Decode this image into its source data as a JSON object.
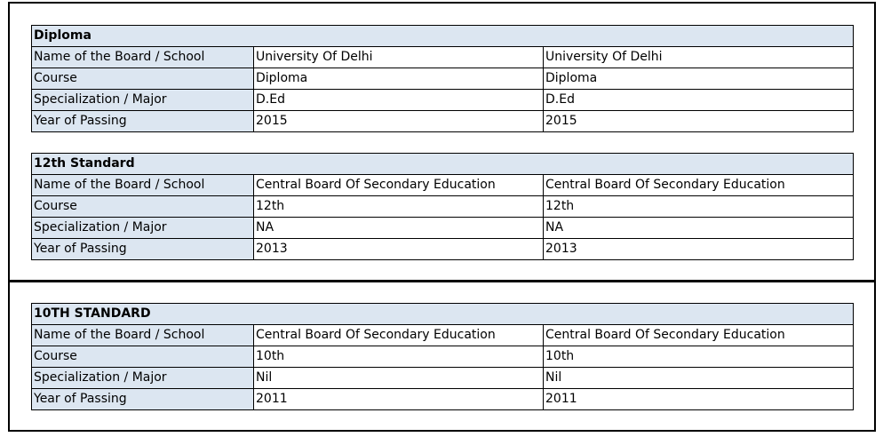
{
  "sections": [
    {
      "title": "Diploma",
      "rows": [
        {
          "label": "Name of the Board / School",
          "v1": "University Of Delhi",
          "v2": "University Of Delhi"
        },
        {
          "label": "Course",
          "v1": "Diploma",
          "v2": "Diploma"
        },
        {
          "label": "Specialization / Major",
          "v1": "D.Ed",
          "v2": "D.Ed"
        },
        {
          "label": "Year of Passing",
          "v1": "2015",
          "v2": "2015"
        }
      ]
    },
    {
      "title": "12th Standard",
      "rows": [
        {
          "label": "Name of the Board / School",
          "v1": "Central Board Of Secondary Education",
          "v2": "Central Board Of Secondary Education"
        },
        {
          "label": "Course",
          "v1": "12th",
          "v2": "12th"
        },
        {
          "label": "Specialization / Major",
          "v1": "NA",
          "v2": "NA"
        },
        {
          "label": "Year of Passing",
          "v1": "2013",
          "v2": "2013"
        }
      ]
    },
    {
      "title": "10TH STANDARD",
      "rows": [
        {
          "label": "Name of the Board / School",
          "v1": "Central Board Of Secondary Education",
          "v2": "Central Board Of Secondary Education"
        },
        {
          "label": "Course",
          "v1": "10th",
          "v2": "10th"
        },
        {
          "label": "Specialization / Major",
          "v1": "Nil",
          "v2": "Nil"
        },
        {
          "label": "Year of Passing",
          "v1": "2011",
          "v2": "2011"
        }
      ]
    }
  ],
  "colors": {
    "header_fill": "#dce6f1",
    "border": "#000000"
  }
}
